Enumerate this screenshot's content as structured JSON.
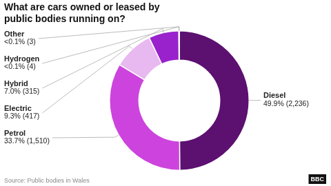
{
  "chart_data": {
    "type": "doughnut",
    "title": "What are cars owned or leased by\npublic bodies running on?",
    "categories": [
      "Diesel",
      "Petrol",
      "Electric",
      "Hybrid",
      "Hydrogen",
      "Other"
    ],
    "values": [
      49.9,
      33.7,
      9.3,
      7.0,
      0.06,
      0.04
    ],
    "value_labels": [
      "49.9% (2,236)",
      "33.7% (1,510)",
      "9.3% (417)",
      "7.0% (315)",
      "<0.1% (4)",
      "<0.1% (3)"
    ],
    "colors": [
      "#5c1070",
      "#cc44dd",
      "#e8b8f0",
      "#9922cc",
      "#c8a0d8",
      "#d0b0e0"
    ],
    "data_labels": true,
    "annotations": [
      "Source: Public bodies in Wales",
      "BBC"
    ]
  }
}
